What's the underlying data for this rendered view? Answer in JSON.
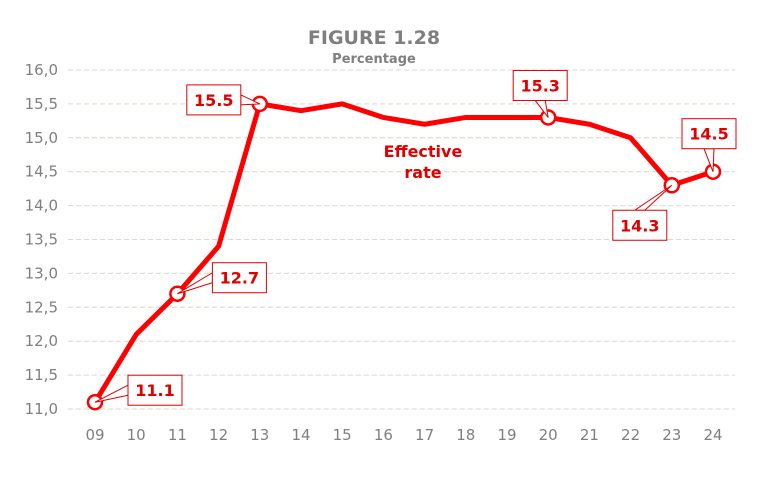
{
  "chart_data": {
    "type": "line",
    "title": "FIGURE 1.28",
    "subtitle": "Percentage",
    "xlabel": "",
    "ylabel": "",
    "categories": [
      "09",
      "10",
      "11",
      "12",
      "13",
      "14",
      "15",
      "16",
      "17",
      "18",
      "19",
      "20",
      "21",
      "22",
      "23",
      "24"
    ],
    "series": [
      {
        "name": "Effective rate",
        "color": "#ff0000",
        "values": [
          11.1,
          12.1,
          12.7,
          13.4,
          15.5,
          15.4,
          15.5,
          15.3,
          15.2,
          15.3,
          15.3,
          15.3,
          15.2,
          15.0,
          14.3,
          14.5
        ]
      }
    ],
    "data_labels": [
      {
        "index": 0,
        "text": "11.1"
      },
      {
        "index": 2,
        "text": "12.7"
      },
      {
        "index": 4,
        "text": "15.5"
      },
      {
        "index": 11,
        "text": "15.3"
      },
      {
        "index": 14,
        "text": "14.3"
      },
      {
        "index": 15,
        "text": "14.5"
      }
    ],
    "annotation": [
      "Effective",
      "rate"
    ],
    "ylim": [
      11.0,
      16.0
    ],
    "yticks": [
      "11,0",
      "11,5",
      "12,0",
      "12,5",
      "13,0",
      "13,5",
      "14,0",
      "14,5",
      "15,0",
      "15,5",
      "16,0"
    ],
    "grid": true,
    "grid_color": "#d9d9c8",
    "legend": "none"
  }
}
